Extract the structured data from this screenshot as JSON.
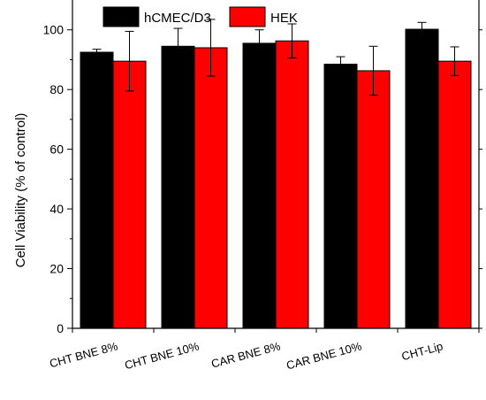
{
  "chart_data": {
    "type": "bar",
    "title": "",
    "xlabel": "",
    "ylabel": "Cell Viability (% of control)",
    "ylim": [
      0,
      110
    ],
    "yticks": [
      0,
      20,
      40,
      60,
      80,
      100
    ],
    "categories": [
      "CHT BNE 8%",
      "CHT BNE 10%",
      "CAR BNE 8%",
      "CAR BNE  10%",
      "CHT-Lip"
    ],
    "series": [
      {
        "name": "hCMEC/D3",
        "color": "#000000",
        "values": [
          92.5,
          94.5,
          95.5,
          88.5,
          100.2
        ],
        "errors": [
          1.0,
          6.0,
          4.5,
          2.5,
          2.3
        ]
      },
      {
        "name": "HEK",
        "color": "#ff0000",
        "values": [
          89.5,
          94.0,
          96.3,
          86.3,
          89.5
        ],
        "errors": [
          10.0,
          9.5,
          5.7,
          8.2,
          4.8
        ]
      }
    ],
    "legend_position": "top",
    "grid": false
  }
}
